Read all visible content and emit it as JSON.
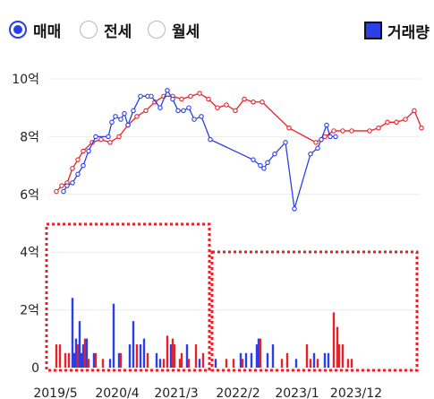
{
  "controls": {
    "radios": [
      {
        "label": "매매",
        "checked": true
      },
      {
        "label": "전세",
        "checked": false
      },
      {
        "label": "월세",
        "checked": false
      }
    ],
    "volume_toggle": {
      "label": "거래량",
      "checked": true
    }
  },
  "chart_data": {
    "type": "line",
    "y_ticks": [
      "10억",
      "8억",
      "6억",
      "4억",
      "2억",
      "0"
    ],
    "x_ticks": [
      "2019/5",
      "2020/4",
      "2021/3",
      "2022/2",
      "2023/1",
      "2023/12"
    ],
    "y_price_range": [
      0,
      10
    ],
    "y_volume_range": [
      0,
      5
    ],
    "grid": true,
    "series": [
      {
        "color": "#e8202a",
        "points": [
          [
            0,
            6.1
          ],
          [
            3,
            6.3
          ],
          [
            6,
            6.4
          ],
          [
            9,
            6.9
          ],
          [
            12,
            7.2
          ],
          [
            15,
            7.5
          ],
          [
            20,
            7.8
          ],
          [
            25,
            7.9
          ],
          [
            30,
            7.8
          ],
          [
            35,
            8.0
          ],
          [
            40,
            8.4
          ],
          [
            45,
            8.7
          ],
          [
            50,
            8.9
          ],
          [
            55,
            9.2
          ],
          [
            60,
            9.4
          ],
          [
            65,
            9.4
          ],
          [
            70,
            9.3
          ],
          [
            75,
            9.4
          ],
          [
            80,
            9.5
          ],
          [
            85,
            9.3
          ],
          [
            90,
            9.0
          ],
          [
            95,
            9.1
          ],
          [
            100,
            8.9
          ],
          [
            105,
            9.3
          ],
          [
            110,
            9.2
          ],
          [
            115,
            9.2
          ],
          [
            130,
            8.3
          ],
          [
            145,
            7.8
          ],
          [
            150,
            8.0
          ],
          [
            155,
            8.2
          ],
          [
            160,
            8.2
          ],
          [
            165,
            8.2
          ],
          [
            175,
            8.2
          ],
          [
            180,
            8.3
          ],
          [
            185,
            8.5
          ],
          [
            190,
            8.5
          ],
          [
            195,
            8.6
          ],
          [
            200,
            8.9
          ],
          [
            204,
            8.3
          ]
        ]
      },
      {
        "color": "#2b3fe8",
        "points": [
          [
            4,
            6.1
          ],
          [
            6,
            6.3
          ],
          [
            9,
            6.4
          ],
          [
            12,
            6.7
          ],
          [
            15,
            7.0
          ],
          [
            18,
            7.5
          ],
          [
            22,
            8.0
          ],
          [
            29,
            8.0
          ],
          [
            31,
            8.5
          ],
          [
            33,
            8.7
          ],
          [
            36,
            8.6
          ],
          [
            38,
            8.8
          ],
          [
            40,
            8.4
          ],
          [
            43,
            8.9
          ],
          [
            47,
            9.4
          ],
          [
            51,
            9.4
          ],
          [
            53,
            9.4
          ],
          [
            58,
            9.0
          ],
          [
            62,
            9.6
          ],
          [
            65,
            9.3
          ],
          [
            68,
            8.9
          ],
          [
            71,
            8.9
          ],
          [
            74,
            9.0
          ],
          [
            77,
            8.6
          ],
          [
            81,
            8.7
          ],
          [
            86,
            7.9
          ],
          [
            110,
            7.2
          ],
          [
            114,
            7.0
          ],
          [
            116,
            6.9
          ],
          [
            118,
            7.1
          ],
          [
            122,
            7.4
          ],
          [
            128,
            7.8
          ],
          [
            133,
            5.5
          ],
          [
            142,
            7.4
          ],
          [
            146,
            7.6
          ],
          [
            148,
            7.9
          ],
          [
            151,
            8.4
          ],
          [
            153,
            8.0
          ],
          [
            156,
            8.0
          ]
        ]
      }
    ],
    "volume_bars": [
      [
        0,
        0.8,
        0
      ],
      [
        2,
        0.8,
        0
      ],
      [
        5,
        0.5,
        0
      ],
      [
        7,
        0.5,
        0
      ],
      [
        9,
        2.4,
        1
      ],
      [
        10,
        0.5,
        1
      ],
      [
        11,
        1.0,
        1
      ],
      [
        12,
        0.8,
        0
      ],
      [
        13,
        1.6,
        1
      ],
      [
        14,
        0.5,
        1
      ],
      [
        15,
        0.8,
        1
      ],
      [
        16,
        1.0,
        0
      ],
      [
        17,
        1.0,
        1
      ],
      [
        18,
        0.3,
        0
      ],
      [
        21,
        0.5,
        1
      ],
      [
        22,
        0.5,
        0
      ],
      [
        26,
        0.3,
        0
      ],
      [
        30,
        0.3,
        1
      ],
      [
        32,
        2.2,
        1
      ],
      [
        35,
        0.5,
        1
      ],
      [
        36,
        0.5,
        0
      ],
      [
        41,
        0.8,
        1
      ],
      [
        43,
        1.6,
        1
      ],
      [
        45,
        0.8,
        0
      ],
      [
        47,
        0.8,
        1
      ],
      [
        49,
        1.0,
        1
      ],
      [
        51,
        0.5,
        0
      ],
      [
        56,
        0.5,
        1
      ],
      [
        58,
        0.3,
        1
      ],
      [
        60,
        0.3,
        0
      ],
      [
        62,
        1.1,
        0
      ],
      [
        64,
        0.8,
        1
      ],
      [
        65,
        1.0,
        0
      ],
      [
        66,
        0.8,
        0
      ],
      [
        69,
        0.3,
        0
      ],
      [
        70,
        0.5,
        0
      ],
      [
        73,
        0.8,
        1
      ],
      [
        74,
        0.3,
        0
      ],
      [
        78,
        0.8,
        0
      ],
      [
        80,
        0.3,
        1
      ],
      [
        82,
        0.5,
        0
      ],
      [
        89,
        0.3,
        1
      ],
      [
        95,
        0.3,
        0
      ],
      [
        99,
        0.3,
        0
      ],
      [
        103,
        0.5,
        1
      ],
      [
        104,
        0.3,
        0
      ],
      [
        106,
        0.5,
        1
      ],
      [
        109,
        0.5,
        1
      ],
      [
        112,
        0.8,
        1
      ],
      [
        113,
        1.0,
        1
      ],
      [
        114,
        1.0,
        0
      ],
      [
        118,
        0.5,
        1
      ],
      [
        121,
        0.8,
        1
      ],
      [
        126,
        0.3,
        0
      ],
      [
        129,
        0.5,
        0
      ],
      [
        134,
        0.3,
        1
      ],
      [
        140,
        0.8,
        0
      ],
      [
        142,
        0.3,
        0
      ],
      [
        144,
        0.5,
        1
      ],
      [
        146,
        0.3,
        0
      ],
      [
        150,
        0.5,
        1
      ],
      [
        152,
        0.5,
        1
      ],
      [
        155,
        1.9,
        0
      ],
      [
        157,
        1.4,
        0
      ],
      [
        158,
        0.8,
        0
      ],
      [
        160,
        0.8,
        0
      ],
      [
        163,
        0.3,
        0
      ],
      [
        165,
        0.3,
        0
      ]
    ]
  }
}
